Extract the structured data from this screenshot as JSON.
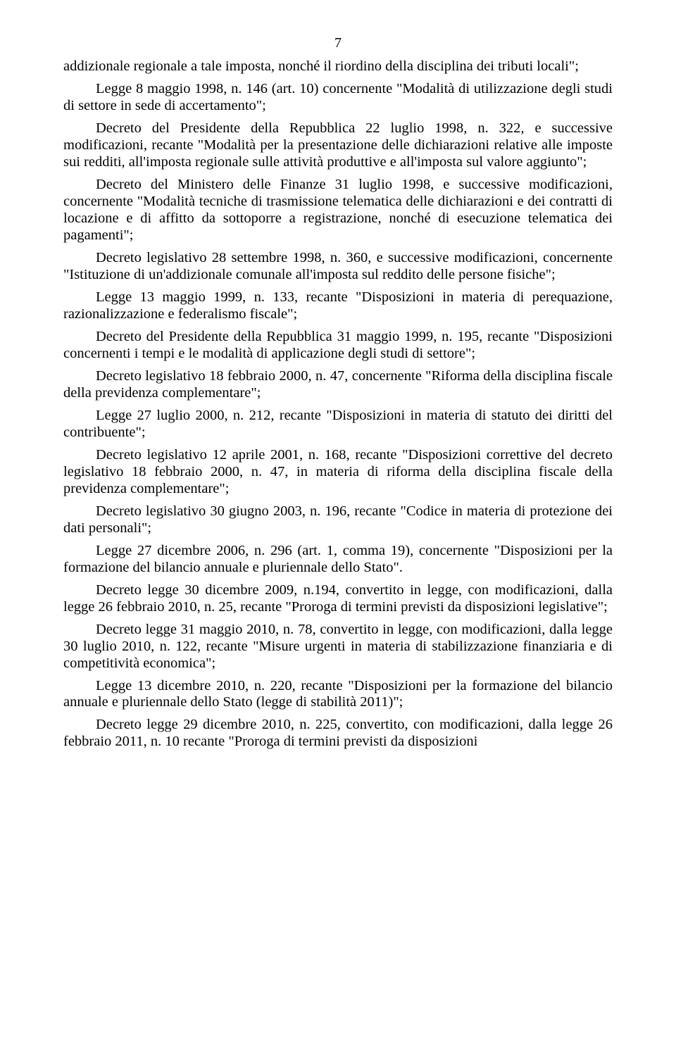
{
  "page_number": "7",
  "font_family": "Times New Roman",
  "font_size_pt": 20.5,
  "text_color": "#000000",
  "background_color": "#ffffff",
  "paragraphs": [
    "addizionale regionale a tale imposta, nonché il riordino della disciplina dei tributi locali\";",
    "Legge 8 maggio 1998, n. 146 (art. 10) concernente \"Modalità di utilizzazione degli studi di settore in sede di accertamento\";",
    "Decreto del Presidente della Repubblica 22 luglio 1998, n. 322, e successive modificazioni, recante \"Modalità per la presentazione delle dichiarazioni relative alle imposte sui redditi, all'imposta regionale sulle attività produttive e all'imposta sul valore aggiunto\";",
    "Decreto del Ministero delle Finanze 31 luglio 1998, e successive modificazioni, concernente \"Modalità tecniche di trasmissione telematica delle dichiarazioni e dei contratti di locazione e di affitto da sottoporre a registrazione, nonché di esecuzione telematica dei pagamenti\";",
    "Decreto legislativo 28 settembre 1998, n. 360, e successive modificazioni, concernente \"Istituzione di un'addizionale comunale all'imposta sul reddito delle persone fisiche\";",
    "Legge 13 maggio 1999, n. 133, recante \"Disposizioni in materia di perequazione, razionalizzazione e federalismo fiscale\";",
    "Decreto del Presidente della Repubblica 31 maggio 1999, n. 195, recante \"Disposizioni concernenti i tempi e le modalità di applicazione degli studi di settore\";",
    "Decreto legislativo 18 febbraio 2000, n. 47, concernente \"Riforma della disciplina fiscale della previdenza complementare\";",
    "Legge 27 luglio 2000, n. 212, recante \"Disposizioni in materia di statuto dei diritti del contribuente\";",
    "Decreto legislativo 12 aprile 2001, n. 168, recante \"Disposizioni correttive del decreto legislativo 18 febbraio 2000, n. 47, in materia di riforma della disciplina fiscale della previdenza complementare\";",
    "Decreto legislativo 30 giugno 2003, n. 196, recante \"Codice in materia di protezione dei dati personali\";",
    "Legge 27 dicembre 2006, n. 296 (art. 1, comma 19), concernente \"Disposizioni per la formazione del bilancio annuale e pluriennale dello Stato\".",
    "Decreto legge 30 dicembre 2009, n.194, convertito in legge, con modificazioni, dalla legge 26 febbraio 2010, n. 25, recante \"Proroga di termini previsti da disposizioni legislative\";",
    "Decreto legge 31 maggio 2010, n. 78, convertito in legge, con modificazioni, dalla legge 30  luglio 2010, n. 122, recante \"Misure urgenti in materia di stabilizzazione finanziaria e di competitività economica\";",
    "Legge 13 dicembre 2010, n. 220, recante \"Disposizioni per la formazione del bilancio  annuale e pluriennale dello Stato (legge di stabilità 2011)\";",
    "Decreto legge 29 dicembre 2010, n. 225, convertito, con modificazioni, dalla legge 26 febbraio 2011, n. 10 recante \"Proroga di termini previsti da disposizioni"
  ]
}
